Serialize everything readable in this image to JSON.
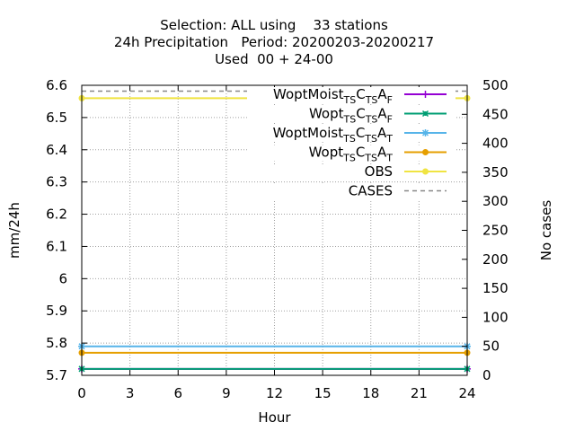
{
  "chart_data": {
    "type": "line",
    "title_lines": [
      "Selection: ALL using    33 stations",
      "24h Precipitation   Period: 20200203-20200217",
      "Used  00 + 24-00"
    ],
    "xlabel": "Hour",
    "ylabel": "mm/24h",
    "y2label": "No cases",
    "x_ticks": [
      0,
      3,
      6,
      9,
      12,
      15,
      18,
      21,
      24
    ],
    "y_ticks": [
      "6.6",
      "6.5",
      "6.4",
      "6.3",
      "6.2",
      "6.1",
      "6",
      "5.9",
      "5.8",
      "5.7"
    ],
    "y2_ticks": [
      "500",
      "450",
      "400",
      "350",
      "300",
      "250",
      "200",
      "150",
      "100",
      "50",
      "0"
    ],
    "xlim": [
      0,
      24
    ],
    "ylim": [
      5.7,
      6.6
    ],
    "y2lim": [
      0,
      500
    ],
    "grid": true,
    "legend_position": "top-right",
    "series": [
      {
        "name": "WoptMoist_TS C_TS A_F",
        "label_parts": [
          [
            "WoptMoist",
            ""
          ],
          [
            "TS",
            "sub"
          ],
          [
            "C",
            ""
          ],
          [
            "TS",
            "sub"
          ],
          [
            "A",
            ""
          ],
          [
            "F",
            "sub"
          ]
        ],
        "color": "#9400d3",
        "marker": "plus",
        "x": [
          0,
          24
        ],
        "y": [
          5.72,
          5.72
        ],
        "axis": "y1"
      },
      {
        "name": "Wopt_TS C_TS A_F",
        "label_parts": [
          [
            "Wopt",
            ""
          ],
          [
            "TS",
            "sub"
          ],
          [
            "C",
            ""
          ],
          [
            "TS",
            "sub"
          ],
          [
            "A",
            ""
          ],
          [
            "F",
            "sub"
          ]
        ],
        "color": "#009e73",
        "marker": "cross",
        "x": [
          0,
          24
        ],
        "y": [
          5.72,
          5.72
        ],
        "axis": "y1"
      },
      {
        "name": "WoptMoist_TS C_TS A_T",
        "label_parts": [
          [
            "WoptMoist",
            ""
          ],
          [
            "TS",
            "sub"
          ],
          [
            "C",
            ""
          ],
          [
            "TS",
            "sub"
          ],
          [
            "A",
            ""
          ],
          [
            "T",
            "sub"
          ]
        ],
        "color": "#56b4e9",
        "marker": "star",
        "x": [
          0,
          24
        ],
        "y": [
          5.79,
          5.79
        ],
        "axis": "y1"
      },
      {
        "name": "Wopt_TS C_TS A_T",
        "label_parts": [
          [
            "Wopt",
            ""
          ],
          [
            "TS",
            "sub"
          ],
          [
            "C",
            ""
          ],
          [
            "TS",
            "sub"
          ],
          [
            "A",
            ""
          ],
          [
            "T",
            "sub"
          ]
        ],
        "color": "#e69f00",
        "marker": "dot",
        "x": [
          0,
          24
        ],
        "y": [
          5.77,
          5.77
        ],
        "axis": "y1"
      },
      {
        "name": "OBS",
        "label_parts": [
          [
            "OBS",
            ""
          ]
        ],
        "color": "#f0e442",
        "marker": "dot",
        "x": [
          0,
          24
        ],
        "y": [
          6.56,
          6.56
        ],
        "axis": "y1"
      },
      {
        "name": "CASES",
        "label_parts": [
          [
            "CASES",
            ""
          ]
        ],
        "color": "#888888",
        "marker": "none",
        "dashed": true,
        "x": [
          0,
          24
        ],
        "y": [
          490,
          490
        ],
        "axis": "y2"
      }
    ],
    "colors": {
      "axis": "#000000",
      "grid": "#a0a0a0"
    }
  }
}
